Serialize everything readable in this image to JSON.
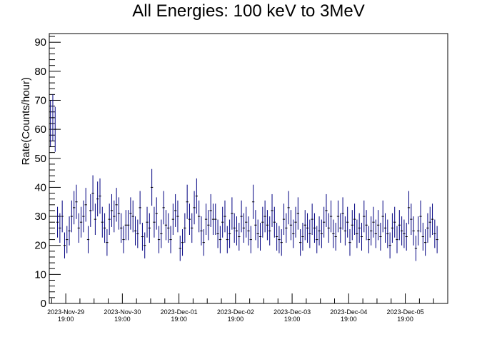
{
  "chart_data": {
    "type": "scatter",
    "title": "All Energies:  100 keV to 3MeV",
    "xlabel": "",
    "ylabel": "Rate(Counts/hour)",
    "ylim": [
      0,
      93
    ],
    "y_ticks": [
      0,
      10,
      20,
      30,
      40,
      50,
      60,
      70,
      80,
      90
    ],
    "x_tick_labels": [
      {
        "date": "2023-Nov-29",
        "time": "19:00"
      },
      {
        "date": "2023-Nov-30",
        "time": "19:00"
      },
      {
        "date": "2023-Dec-01",
        "time": "19:00"
      },
      {
        "date": "2023-Dec-02",
        "time": "19:00"
      },
      {
        "date": "2023-Dec-03",
        "time": "19:00"
      },
      {
        "date": "2023-Dec-04",
        "time": "19:00"
      },
      {
        "date": "2023-Dec-05",
        "time": "19:00"
      }
    ],
    "x_range_hours": [
      -7,
      162
    ],
    "grid": false,
    "legend": "none",
    "series": [
      {
        "color": "#000080",
        "bin_hours": 1,
        "values": [
          62,
          64,
          60,
          28,
          26,
          30,
          20,
          22,
          25,
          30,
          33,
          35,
          26,
          28,
          30,
          34,
          22,
          32,
          38,
          29,
          36,
          37,
          28,
          26,
          21,
          29,
          32,
          30,
          34,
          31,
          26,
          22,
          27,
          27,
          31,
          30,
          25,
          24,
          33,
          23,
          20,
          28,
          26,
          40,
          28,
          31,
          22,
          24,
          33,
          27,
          26,
          22,
          29,
          32,
          30,
          19,
          21,
          26,
          35,
          29,
          26,
          33,
          37,
          30,
          25,
          21,
          29,
          27,
          32,
          29,
          29,
          24,
          22,
          28,
          30,
          22,
          24,
          31,
          26,
          25,
          23,
          30,
          26,
          28,
          25,
          22,
          35,
          27,
          24,
          23,
          28,
          30,
          27,
          25,
          32,
          28,
          23,
          22,
          21,
          29,
          26,
          33,
          27,
          24,
          28,
          31,
          21,
          23,
          27,
          26,
          24,
          29,
          26,
          22,
          25,
          24,
          28,
          32,
          26,
          30,
          24,
          23,
          30,
          26,
          31,
          25,
          28,
          21,
          27,
          29,
          24,
          26,
          23,
          30,
          27,
          22,
          25,
          28,
          24,
          27,
          23,
          30,
          26,
          24,
          20,
          26,
          28,
          22,
          27,
          25,
          24,
          23,
          33,
          29,
          25,
          19,
          25,
          30,
          23,
          21,
          26,
          28,
          29,
          24,
          22
        ]
      }
    ]
  }
}
